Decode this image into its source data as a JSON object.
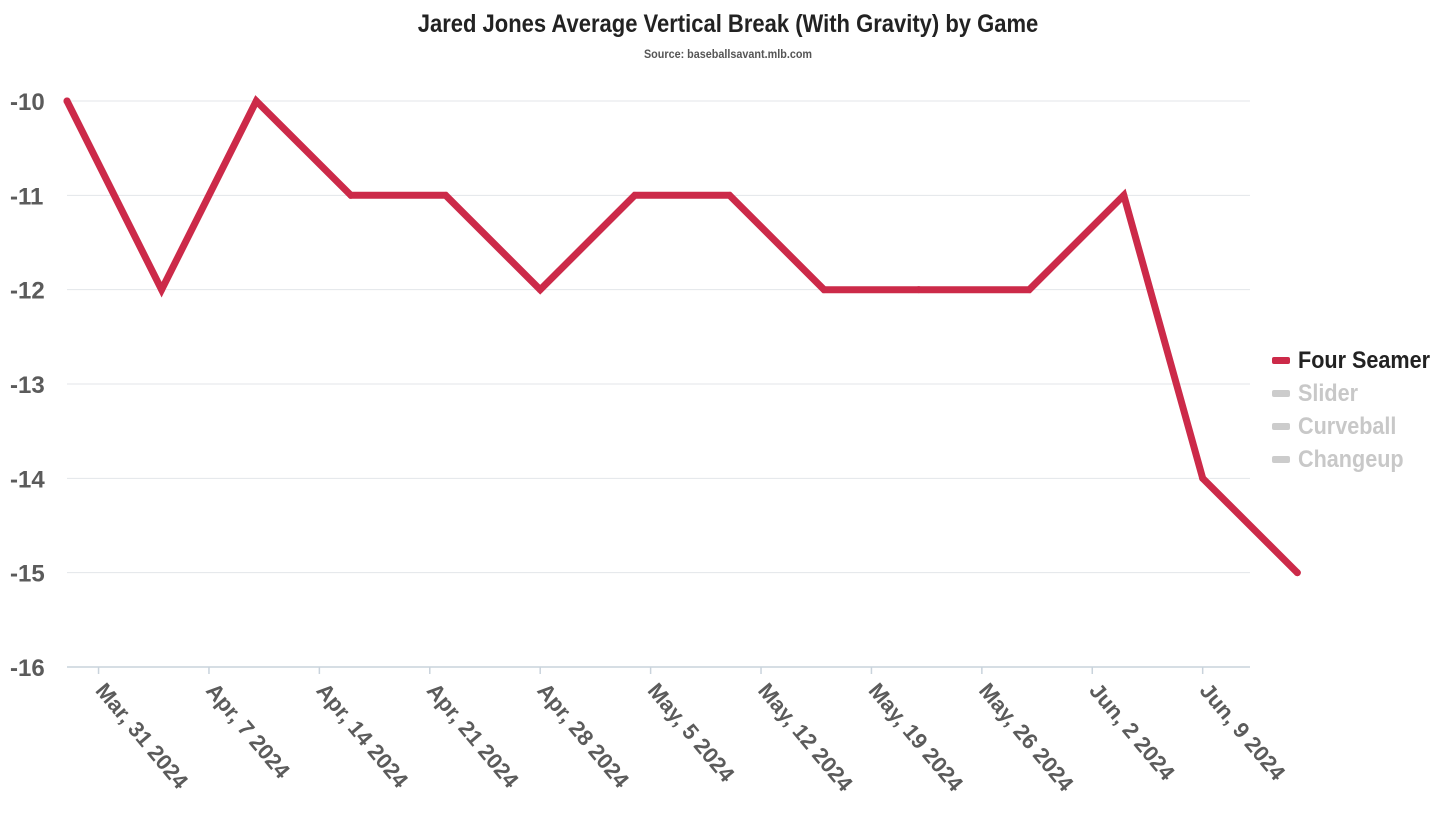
{
  "chart_data": {
    "type": "line",
    "title": "Jared Jones Average Vertical Break (With Gravity) by Game",
    "subtitle": "Source: baseballsavant.mlb.com",
    "xlabel": "",
    "ylabel": "",
    "x_ticks": [
      "Mar, 31 2024",
      "Apr, 7 2024",
      "Apr, 14 2024",
      "Apr, 21 2024",
      "Apr, 28 2024",
      "May, 5 2024",
      "May, 12 2024",
      "May, 19 2024",
      "May, 26 2024",
      "Jun, 2 2024",
      "Jun, 9 2024"
    ],
    "x_range": [
      "2024-03-29",
      "2024-06-12"
    ],
    "ylim": [
      -16,
      -10
    ],
    "y_ticks": [
      -10,
      -11,
      -12,
      -13,
      -14,
      -15,
      -16
    ],
    "grid": true,
    "legend_position": "right",
    "series": [
      {
        "name": "Four Seamer",
        "color": "#cc2a49",
        "active": true,
        "points": [
          {
            "x": "2024-03-29",
            "y": -10
          },
          {
            "x": "2024-04-04",
            "y": -12
          },
          {
            "x": "2024-04-10",
            "y": -10
          },
          {
            "x": "2024-04-16",
            "y": -11
          },
          {
            "x": "2024-04-22",
            "y": -11
          },
          {
            "x": "2024-04-28",
            "y": -12
          },
          {
            "x": "2024-05-04",
            "y": -11
          },
          {
            "x": "2024-05-10",
            "y": -11
          },
          {
            "x": "2024-05-16",
            "y": -12
          },
          {
            "x": "2024-05-22",
            "y": -12
          },
          {
            "x": "2024-05-29",
            "y": -12
          },
          {
            "x": "2024-06-04",
            "y": -11
          },
          {
            "x": "2024-06-09",
            "y": -14
          },
          {
            "x": "2024-06-15",
            "y": -15
          }
        ]
      },
      {
        "name": "Slider",
        "color": "#cccccc",
        "active": false,
        "points": []
      },
      {
        "name": "Curveball",
        "color": "#cccccc",
        "active": false,
        "points": []
      },
      {
        "name": "Changeup",
        "color": "#cccccc",
        "active": false,
        "points": []
      }
    ]
  }
}
